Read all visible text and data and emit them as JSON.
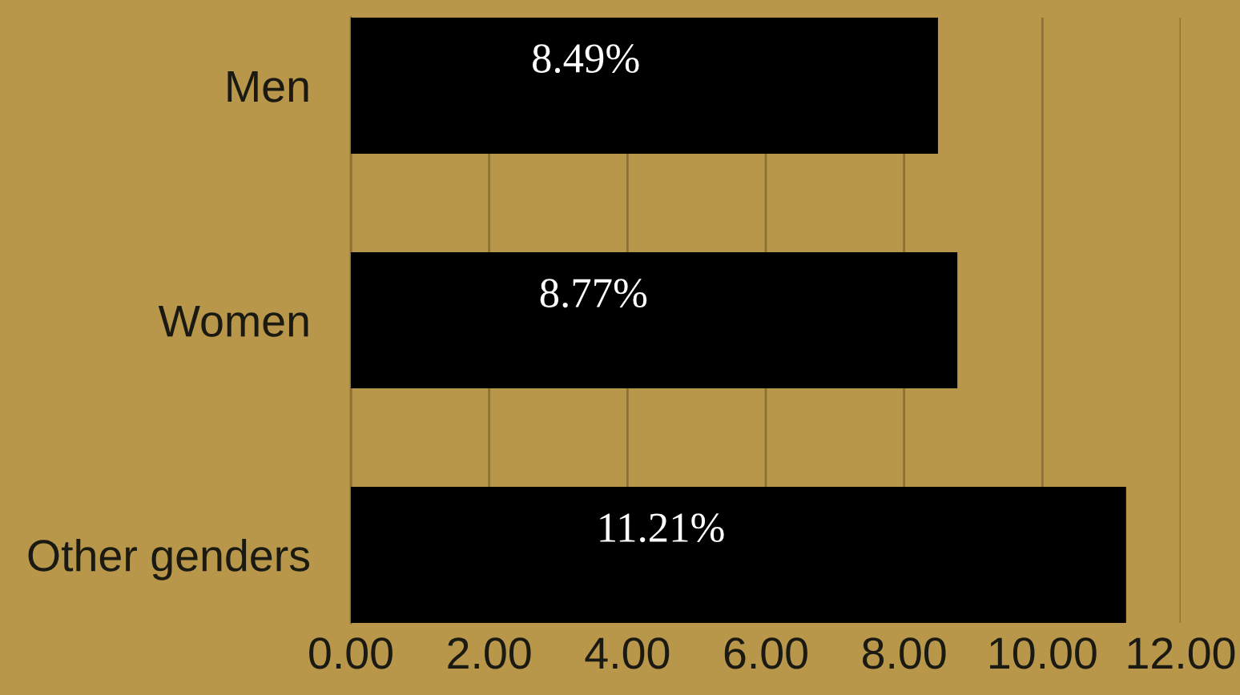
{
  "chart_data": {
    "type": "bar",
    "orientation": "horizontal",
    "categories": [
      "Men",
      "Women",
      "Other genders"
    ],
    "values": [
      8.49,
      8.77,
      11.21
    ],
    "color": "#000000",
    "value_labels": [
      "8.49%",
      "8.77%",
      "11.21%"
    ],
    "xlim": [
      0,
      12
    ],
    "xticks": [
      {
        "value": 0,
        "label": "0.00"
      },
      {
        "value": 2,
        "label": "2.00"
      },
      {
        "value": 4,
        "label": "4.00"
      },
      {
        "value": 6,
        "label": "6.00"
      },
      {
        "value": 8,
        "label": "8.00"
      },
      {
        "value": 10,
        "label": "10.00"
      },
      {
        "value": 12,
        "label": "12.00"
      }
    ],
    "grid": "x"
  }
}
